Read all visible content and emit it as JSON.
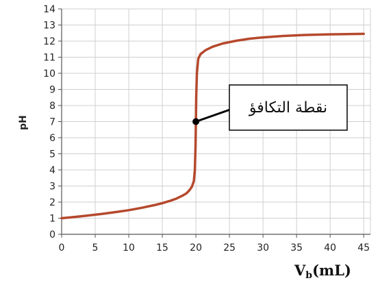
{
  "chart_data": {
    "type": "line",
    "title": "",
    "ylabel": "pH",
    "xlabel_main": "V",
    "xlabel_sub": "b",
    "xlabel_unit": "(mL)",
    "xlim": [
      0,
      46
    ],
    "ylim": [
      0,
      14
    ],
    "x_ticks": [
      0,
      5,
      10,
      15,
      20,
      25,
      30,
      35,
      40,
      45
    ],
    "y_ticks": [
      0,
      1,
      2,
      3,
      4,
      5,
      6,
      7,
      8,
      9,
      10,
      11,
      12,
      13,
      14
    ],
    "grid": true,
    "series": [
      {
        "color": "#b5482c",
        "x": [
          0,
          2,
          4,
          6,
          8,
          10,
          12,
          14,
          15,
          16,
          17,
          18,
          18.6,
          19,
          19.4,
          19.7,
          19.85,
          19.95,
          20,
          20.05,
          20.15,
          20.35,
          20.7,
          21.5,
          22.5,
          24,
          26,
          28,
          30,
          33,
          36,
          40,
          45
        ],
        "y": [
          1.0,
          1.08,
          1.17,
          1.27,
          1.38,
          1.5,
          1.65,
          1.83,
          1.93,
          2.06,
          2.2,
          2.4,
          2.55,
          2.72,
          2.95,
          3.3,
          4.0,
          5.5,
          7.0,
          8.6,
          10.0,
          10.9,
          11.2,
          11.45,
          11.65,
          11.85,
          12.02,
          12.15,
          12.23,
          12.32,
          12.38,
          12.42,
          12.45
        ]
      }
    ],
    "equivalence_point": {
      "x": 20,
      "y": 7
    },
    "annotation": "نقطة التكافؤ",
    "colors": {
      "curve": "#b5482c",
      "grid": "#cfcfcf",
      "axis": "#555555",
      "point": "#000000"
    }
  }
}
